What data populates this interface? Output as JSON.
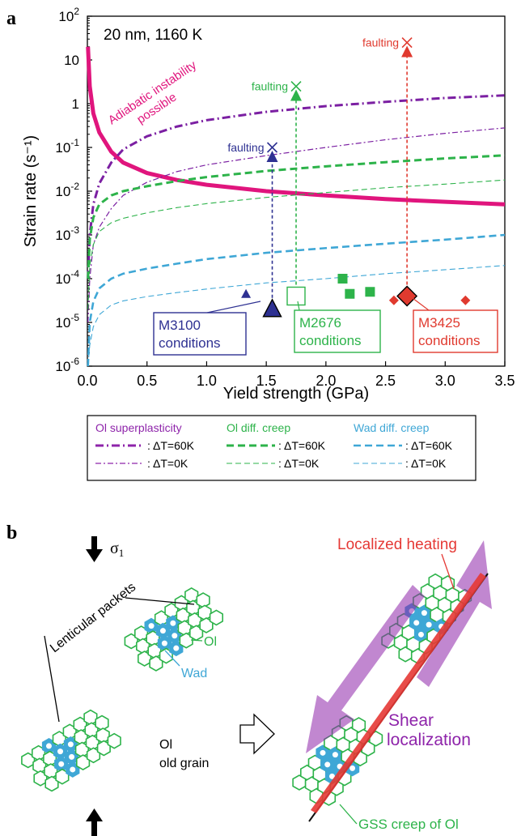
{
  "panel_a": {
    "letter": "a",
    "condition": "20 nm, 1160 K",
    "adiabatic_label": [
      "Adiabatic instability",
      "possible"
    ],
    "faulting_label": "faulting",
    "samples": [
      {
        "id": "M3100",
        "name": "M3100",
        "sub": "conditions",
        "color": "#2e3192",
        "fault_x": 1.55,
        "fault_y": 0.1,
        "main": {
          "x": 1.55,
          "y": 2e-05
        },
        "small": [
          {
            "x": 1.33,
            "y": 4.5e-05
          }
        ]
      },
      {
        "id": "M2676",
        "name": "M2676",
        "sub": "conditions",
        "color": "#2db34a",
        "fault_x": 1.75,
        "fault_y": 2.5,
        "main": {
          "x": 1.75,
          "y": 4e-05
        },
        "small": [
          {
            "x": 2.14,
            "y": 0.0001
          },
          {
            "x": 2.2,
            "y": 4.5e-05
          },
          {
            "x": 2.37,
            "y": 5e-05
          }
        ]
      },
      {
        "id": "M3425",
        "name": "M3425",
        "sub": "conditions",
        "color": "#e03a2f",
        "fault_x": 2.68,
        "fault_y": 25,
        "main": {
          "x": 2.68,
          "y": 4e-05
        },
        "small": [
          {
            "x": 2.57,
            "y": 3.2e-05
          },
          {
            "x": 3.17,
            "y": 3.2e-05
          }
        ]
      }
    ]
  },
  "chart_data": {
    "type": "line",
    "xlabel": "Yield strength (GPa)",
    "ylabel": "Strain rate (s⁻¹)",
    "xlim": [
      0,
      3.5
    ],
    "ylim": [
      1e-06,
      100
    ],
    "yscale": "log",
    "xticks": [
      "0.0",
      "0.5",
      "1.0",
      "1.5",
      "2.0",
      "2.5",
      "3.0",
      "3.5"
    ],
    "yticks": [
      {
        "base": "10",
        "exp": "2",
        "v": 100
      },
      {
        "base": "10",
        "exp": "",
        "v": 10
      },
      {
        "base": "1",
        "exp": "",
        "v": 1
      },
      {
        "base": "10",
        "exp": "-1",
        "v": 0.1
      },
      {
        "base": "10",
        "exp": "-2",
        "v": 0.01
      },
      {
        "base": "10",
        "exp": "-3",
        "v": 0.001
      },
      {
        "base": "10",
        "exp": "-4",
        "v": 0.0001
      },
      {
        "base": "10",
        "exp": "-5",
        "v": 1e-05
      },
      {
        "base": "10",
        "exp": "-6",
        "v": 1e-06
      }
    ],
    "series": [
      {
        "name": "Adiabatic instability",
        "color": "#e0157d",
        "x": [
          0.005,
          0.02,
          0.05,
          0.1,
          0.2,
          0.3,
          0.5,
          0.75,
          1.0,
          1.5,
          2.0,
          2.5,
          3.0,
          3.5
        ],
        "y": [
          20,
          2.5,
          0.6,
          0.22,
          0.08,
          0.045,
          0.026,
          0.018,
          0.014,
          0.01,
          0.008,
          0.0066,
          0.0057,
          0.005
        ]
      },
      {
        "name": "Ol superplasticity ΔT=60K",
        "color": "#7b1fa2",
        "x": [
          0.005,
          0.02,
          0.05,
          0.1,
          0.2,
          0.3,
          0.5,
          0.75,
          1.0,
          1.5,
          2.0,
          2.5,
          3.0,
          3.5
        ],
        "y": [
          0.0001,
          0.001,
          0.005,
          0.015,
          0.045,
          0.09,
          0.18,
          0.3,
          0.42,
          0.65,
          0.88,
          1.1,
          1.35,
          1.55
        ]
      },
      {
        "name": "Ol superplasticity ΔT=0K",
        "color": "#7b1fa2",
        "x": [
          0.005,
          0.02,
          0.05,
          0.1,
          0.2,
          0.3,
          0.5,
          0.75,
          1.0,
          1.5,
          2.0,
          2.5,
          3.0,
          3.5
        ],
        "y": [
          1e-05,
          0.0001,
          0.0006,
          0.0015,
          0.004,
          0.008,
          0.016,
          0.028,
          0.04,
          0.065,
          0.1,
          0.15,
          0.21,
          0.28
        ]
      },
      {
        "name": "Ol diff. creep ΔT=60K",
        "color": "#2db34a",
        "x": [
          0.005,
          0.02,
          0.05,
          0.1,
          0.2,
          0.3,
          0.5,
          0.75,
          1.0,
          1.5,
          2.0,
          2.5,
          3.0,
          3.5
        ],
        "y": [
          0.0001,
          0.0008,
          0.0025,
          0.005,
          0.008,
          0.01,
          0.013,
          0.017,
          0.021,
          0.029,
          0.037,
          0.046,
          0.056,
          0.066
        ]
      },
      {
        "name": "Ol diff. creep ΔT=0K",
        "color": "#2db34a",
        "x": [
          0.005,
          0.02,
          0.05,
          0.1,
          0.2,
          0.3,
          0.5,
          0.75,
          1.0,
          1.5,
          2.0,
          2.5,
          3.0,
          3.5
        ],
        "y": [
          2e-05,
          0.0002,
          0.0006,
          0.0012,
          0.0019,
          0.0024,
          0.0032,
          0.0042,
          0.0052,
          0.0072,
          0.0093,
          0.012,
          0.0145,
          0.018
        ]
      },
      {
        "name": "Wad diff. creep ΔT=60K",
        "color": "#3fa7d6",
        "x": [
          0.005,
          0.02,
          0.05,
          0.1,
          0.2,
          0.3,
          0.5,
          0.75,
          1.0,
          1.5,
          2.0,
          2.5,
          3.0,
          3.5
        ],
        "y": [
          1e-06,
          1e-05,
          3e-05,
          6e-05,
          0.0001,
          0.00013,
          0.00017,
          0.00022,
          0.00028,
          0.00039,
          0.0005,
          0.00063,
          0.00078,
          0.001
        ]
      },
      {
        "name": "Wad diff. creep ΔT=0K",
        "color": "#3fa7d6",
        "x": [
          0.005,
          0.02,
          0.05,
          0.1,
          0.2,
          0.3,
          0.5,
          0.75,
          1.0,
          1.5,
          2.0,
          2.5,
          3.0,
          3.5
        ],
        "y": [
          1e-06,
          3e-06,
          8e-06,
          1.5e-05,
          2.5e-05,
          3.1e-05,
          3.9e-05,
          4.8e-05,
          5.8e-05,
          8e-05,
          0.0001,
          0.00013,
          0.00016,
          0.0002
        ]
      }
    ],
    "legend": {
      "columns": [
        {
          "title": "Ol superplasticity",
          "color": "#8e24aa",
          "entries": [
            ": ΔT=60K",
            ": ΔT=0K"
          ]
        },
        {
          "title": "Ol diff. creep",
          "color": "#2db34a",
          "entries": [
            ": ΔT=60K",
            ": ΔT=0K"
          ]
        },
        {
          "title": "Wad diff. creep",
          "color": "#3fa7d6",
          "entries": [
            ": ΔT=60K",
            ": ΔT=0K"
          ]
        }
      ]
    }
  },
  "panel_b": {
    "letter": "b",
    "sigma": "σ",
    "sigma_sub": "1",
    "lenticular": "Lenticular packets",
    "ol": "Ol",
    "wad": "Wad",
    "old_grain": [
      "Ol",
      "old grain"
    ],
    "localized_heating": "Localized heating",
    "shear_localization": [
      "Shear",
      "localization"
    ],
    "gss_creep": "GSS creep of Ol",
    "colors": {
      "ol": "#2db34a",
      "wad": "#3fa7d6",
      "heat": "#e53935",
      "shear": "#8e24aa"
    }
  }
}
